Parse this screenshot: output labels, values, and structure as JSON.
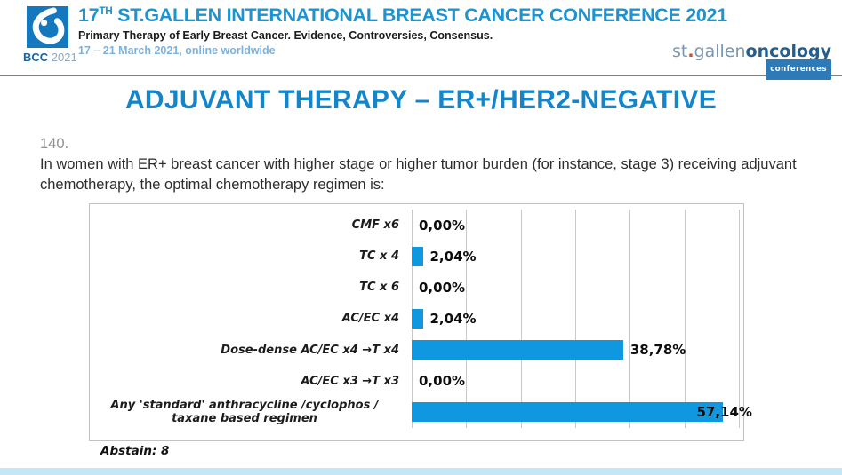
{
  "header": {
    "bcc_logo": {
      "bcc": "BCC",
      "year": "2021"
    },
    "conference_title": {
      "number": "17",
      "ordinal": "TH",
      "rest": " ST.GALLEN INTERNATIONAL BREAST CANCER CONFERENCE 2021"
    },
    "subtitle": "Primary Therapy of Early Breast Cancer. Evidence, Controversies, Consensus.",
    "dateline": "17 – 21 March 2021, online worldwide",
    "sg_logo": {
      "st": "st",
      "dot": ".",
      "gallen": "gallen",
      "oncology": "oncology",
      "badge": "conferences"
    }
  },
  "slide": {
    "title": "ADJUVANT THERAPY – ER+/HER2-NEGATIVE",
    "question_number": "140.",
    "question_text": "In women with ER+ breast cancer with higher stage or higher  tumor burden (for instance, stage 3) receiving adjuvant chemotherapy, the optimal chemotherapy regimen is:",
    "abstain_note": "Abstain: 8"
  },
  "chart_data": {
    "type": "bar",
    "orientation": "horizontal",
    "title": "",
    "categories": [
      "CMF x6",
      "TC x 4",
      "TC x 6",
      "AC/EC  x4",
      "Dose-dense AC/EC x4 →T x4",
      "AC/EC x3 →T x3",
      "Any 'standard' anthracycline /cyclophos / taxane based regimen"
    ],
    "values": [
      0,
      2.04,
      0,
      2.04,
      38.78,
      0,
      57.14
    ],
    "value_labels": [
      "0,00%",
      "2,04%",
      "0,00%",
      "2,04%",
      "38,78%",
      "0,00%",
      "57,14%"
    ],
    "xlim": [
      0,
      60
    ],
    "gridline_interval": 10,
    "grid": true,
    "legend": false,
    "bar_color": "#0f97df",
    "gridline_color": "#c9c9c9"
  },
  "colors": {
    "accent_blue": "#1585c8",
    "header_title_blue": "#1b94d1",
    "bar_blue": "#0f97df",
    "logo_box_blue": "#1478be",
    "bottom_strip": "#c3e7f4"
  }
}
